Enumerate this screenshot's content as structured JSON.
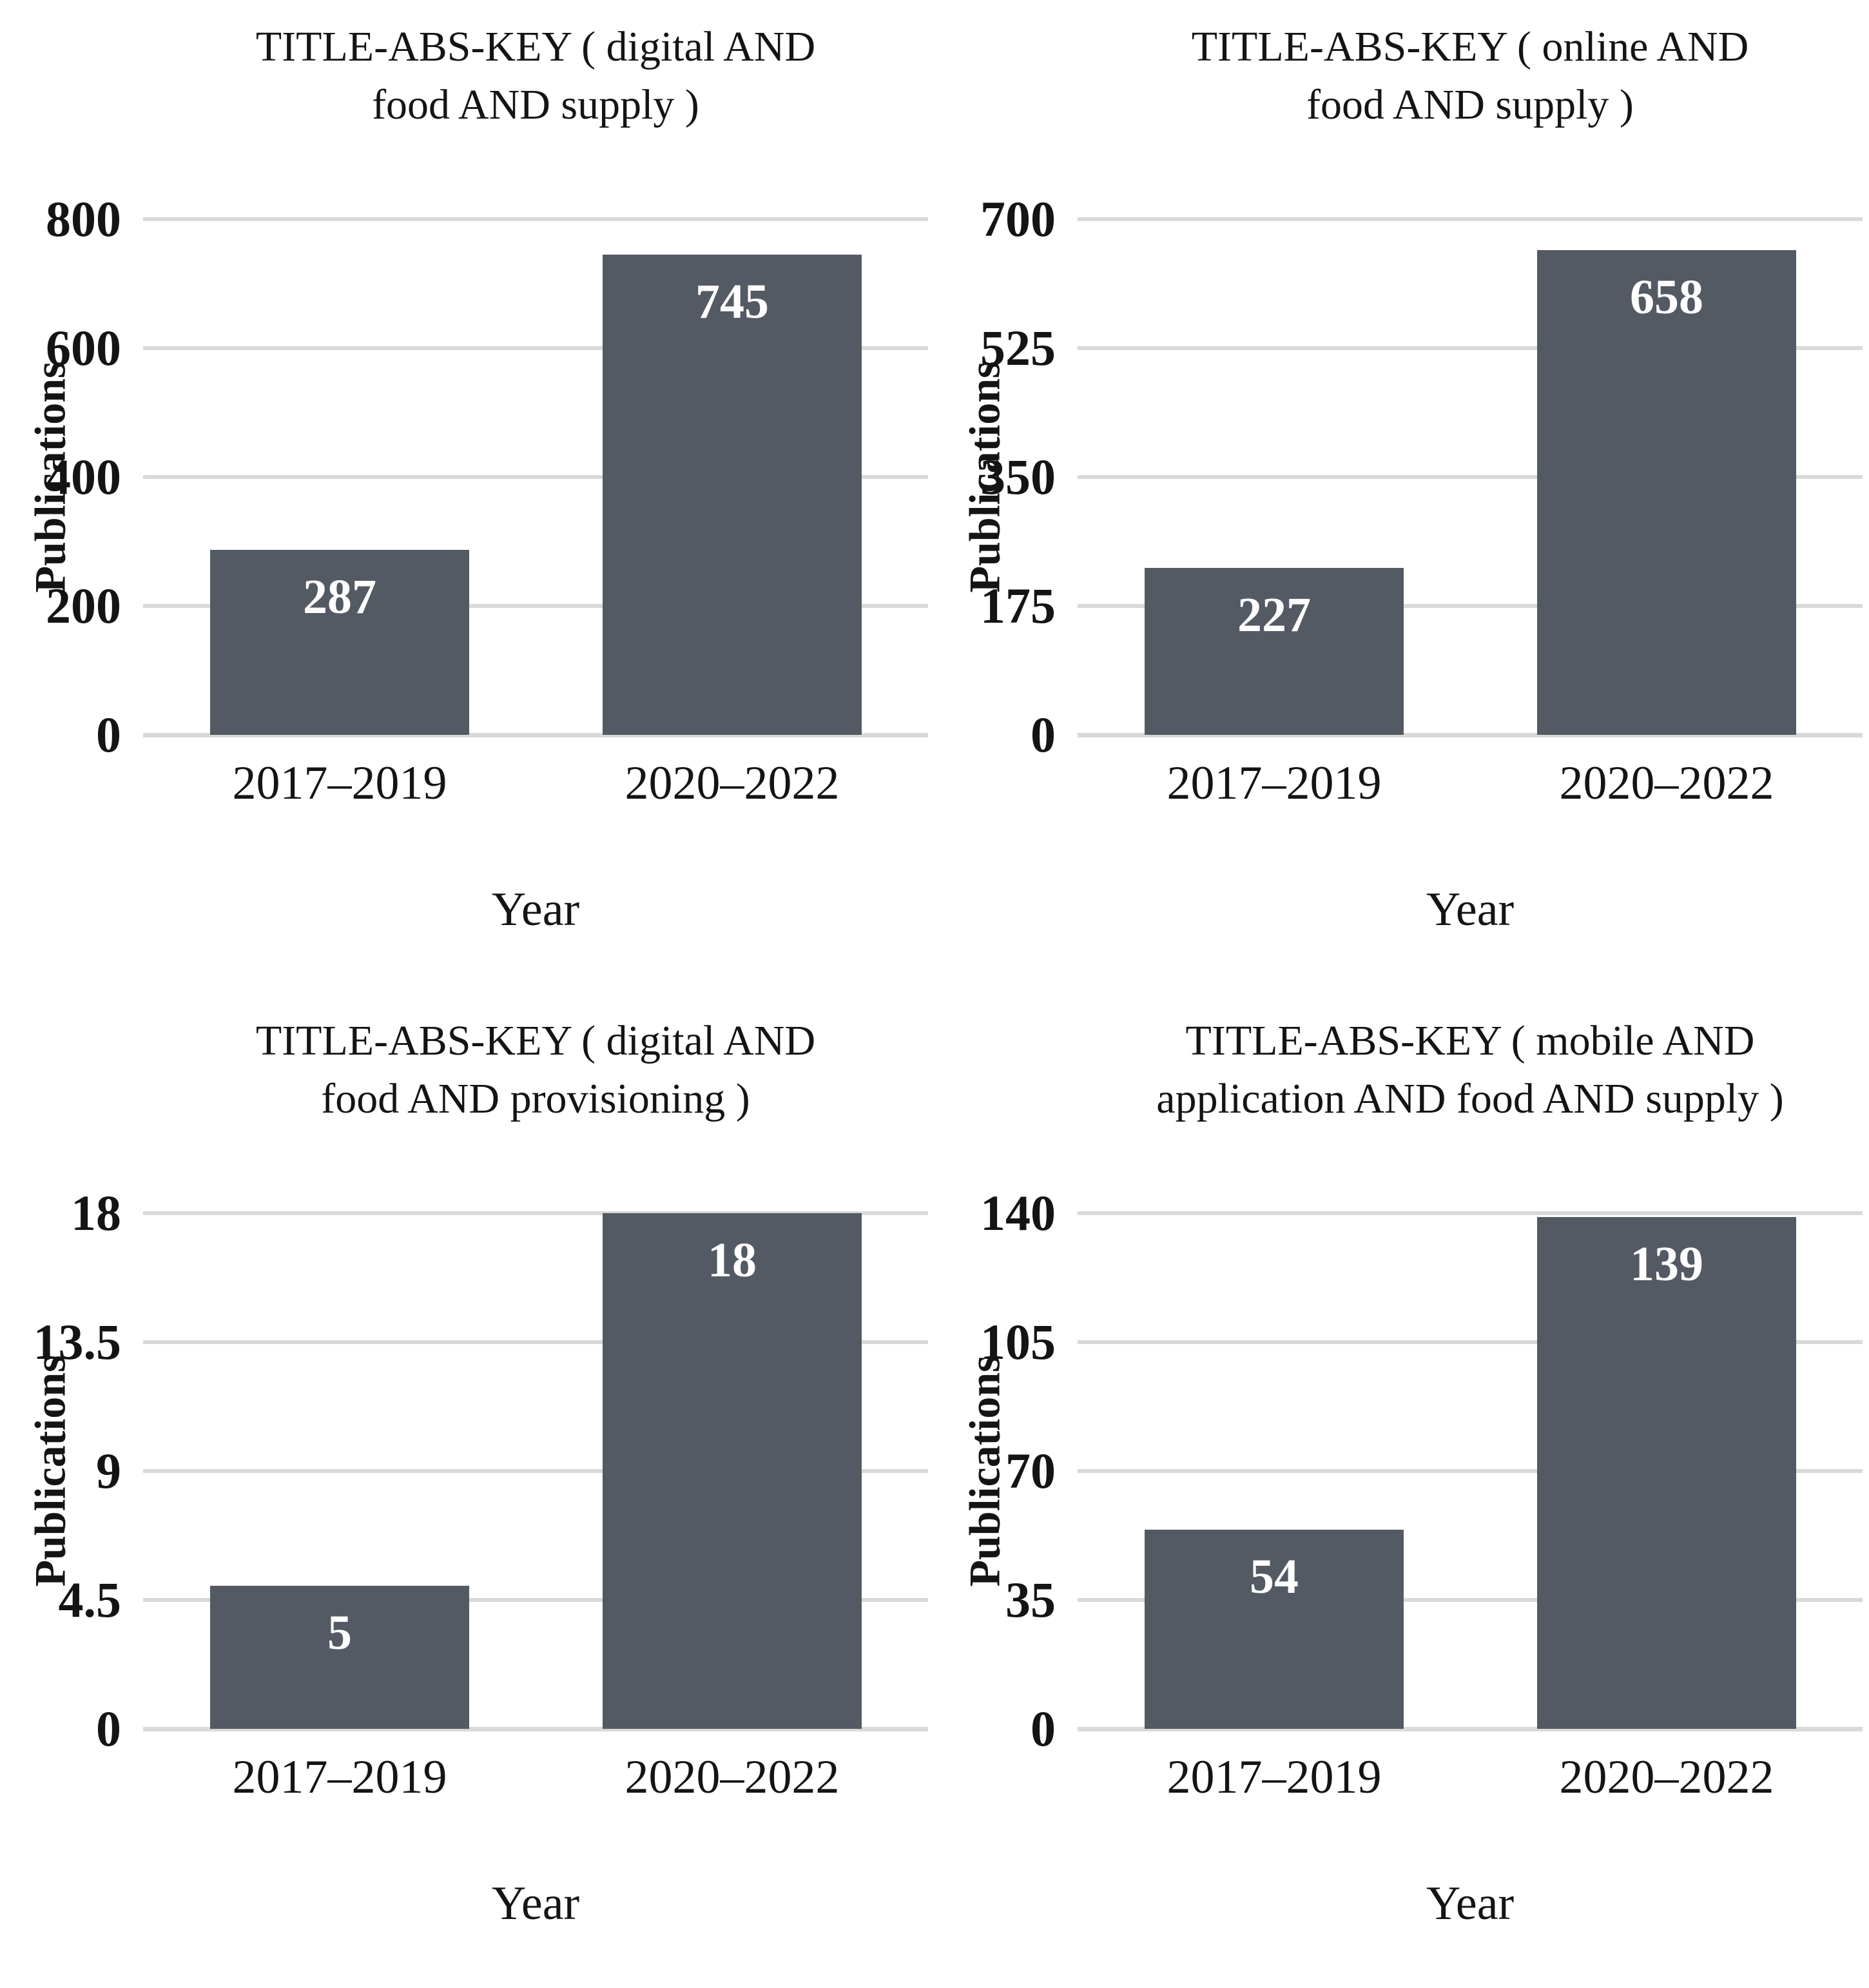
{
  "figure": {
    "background": "#ffffff",
    "bar_color": "#545a64",
    "gridline_color": "#d9d9d9",
    "value_label_color": "#ffffff",
    "text_color": "#141414"
  },
  "chart_data": [
    {
      "type": "bar",
      "title": "TITLE-ABS-KEY ( digital AND food AND supply )",
      "title_lines": [
        "TITLE-ABS-KEY ( digital AND",
        "food AND supply )"
      ],
      "categories": [
        "2017–2019",
        "2020–2022"
      ],
      "values": [
        287,
        745
      ],
      "value_labels": [
        "287",
        "745"
      ],
      "xlabel": "Year",
      "ylabel": "Publications",
      "yticks": [
        0,
        200,
        400,
        600,
        800
      ],
      "ytick_labels": [
        "0",
        "200",
        "400",
        "600",
        "800"
      ],
      "ylim": [
        0,
        800
      ],
      "grid": "horizontal",
      "legend": "none"
    },
    {
      "type": "bar",
      "title": "TITLE-ABS-KEY ( online AND food AND supply )",
      "title_lines": [
        "TITLE-ABS-KEY ( online AND",
        "food AND supply )"
      ],
      "categories": [
        "2017–2019",
        "2020–2022"
      ],
      "values": [
        227,
        658
      ],
      "value_labels": [
        "227",
        "658"
      ],
      "xlabel": "Year",
      "ylabel": "Publications",
      "yticks": [
        0,
        175,
        350,
        525,
        700
      ],
      "ytick_labels": [
        "0",
        "175",
        "350",
        "525",
        "700"
      ],
      "ylim": [
        0,
        700
      ],
      "grid": "horizontal",
      "legend": "none"
    },
    {
      "type": "bar",
      "title": "TITLE-ABS-KEY ( digital AND food AND provisioning )",
      "title_lines": [
        "TITLE-ABS-KEY ( digital AND",
        "food AND provisioning )"
      ],
      "categories": [
        "2017–2019",
        "2020–2022"
      ],
      "values": [
        5,
        18
      ],
      "value_labels": [
        "5",
        "18"
      ],
      "xlabel": "Year",
      "ylabel": "Publications",
      "yticks": [
        0,
        4.5,
        9,
        13.5,
        18
      ],
      "ytick_labels": [
        "0",
        "4.5",
        "9",
        "13.5",
        "18"
      ],
      "ylim": [
        0,
        18
      ],
      "grid": "horizontal",
      "legend": "none"
    },
    {
      "type": "bar",
      "title": "TITLE-ABS-KEY ( mobile AND application AND food AND supply )",
      "title_lines": [
        "TITLE-ABS-KEY ( mobile AND",
        "application AND food AND supply )"
      ],
      "categories": [
        "2017–2019",
        "2020–2022"
      ],
      "values": [
        54,
        139
      ],
      "value_labels": [
        "54",
        "139"
      ],
      "xlabel": "Year",
      "ylabel": "Publications",
      "yticks": [
        0,
        35,
        70,
        105,
        140
      ],
      "ytick_labels": [
        "0",
        "35",
        "70",
        "105",
        "140"
      ],
      "ylim": [
        0,
        140
      ],
      "grid": "horizontal",
      "legend": "none"
    }
  ]
}
